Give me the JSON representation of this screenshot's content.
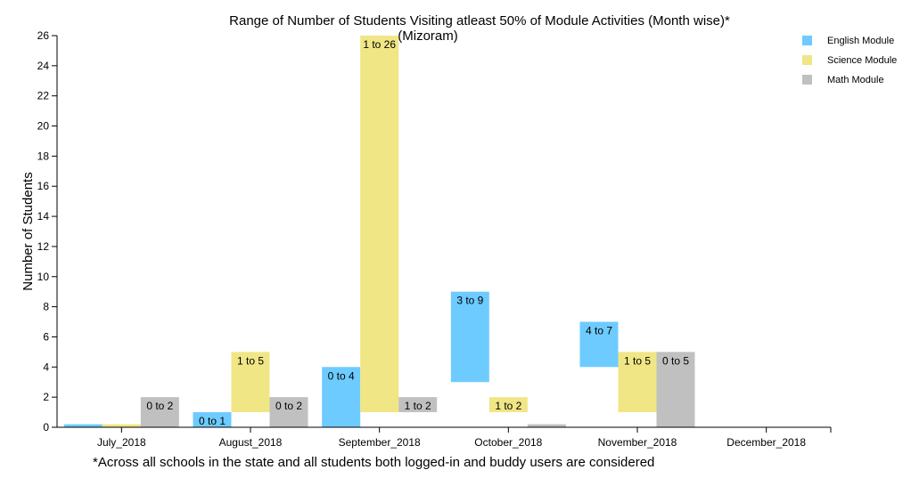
{
  "chart_data": {
    "type": "bar",
    "title": "Range of Number of Students Visiting atleast 50% of Module Activities (Month wise)*",
    "subtitle": "(Mizoram)",
    "ylabel": "Number of Students",
    "xlabel": "",
    "ylim": [
      0,
      26
    ],
    "yticks": [
      0,
      2,
      4,
      6,
      8,
      10,
      12,
      14,
      16,
      18,
      20,
      22,
      24,
      26
    ],
    "categories": [
      "July_2018",
      "August_2018",
      "September_2018",
      "October_2018",
      "November_2018",
      "December_2018"
    ],
    "series": [
      {
        "name": "English Module",
        "color": "#6ecbff",
        "ranges": [
          [
            0,
            0.2
          ],
          [
            0,
            1
          ],
          [
            0,
            4
          ],
          [
            3,
            9
          ],
          [
            4,
            7
          ],
          null
        ],
        "labels": [
          "",
          "0 to 1",
          "0 to 4",
          "3 to 9",
          "4 to 7",
          ""
        ]
      },
      {
        "name": "Science Module",
        "color": "#f0e685",
        "ranges": [
          [
            0,
            0.2
          ],
          [
            1,
            5
          ],
          [
            1,
            26
          ],
          [
            1,
            2
          ],
          [
            1,
            5
          ],
          null
        ],
        "labels": [
          "",
          "1 to 5",
          "1 to 26",
          "1 to 2",
          "1 to 5",
          ""
        ]
      },
      {
        "name": "Math Module",
        "color": "#c0c0c0",
        "ranges": [
          [
            0,
            2
          ],
          [
            0,
            2
          ],
          [
            1,
            2
          ],
          [
            0,
            0.2
          ],
          [
            0,
            5
          ],
          null
        ],
        "labels": [
          "0 to 2",
          "0 to 2",
          "1 to 2",
          "",
          "0 to 5",
          ""
        ]
      }
    ],
    "legend_position": "top-right",
    "footnote": "*Across all schools in the state and all students both logged-in and buddy users are considered"
  }
}
